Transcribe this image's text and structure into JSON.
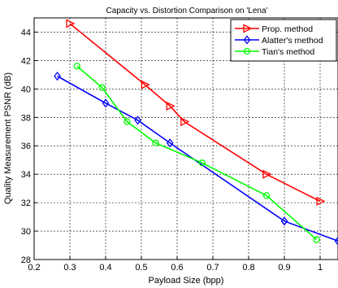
{
  "chart_data": {
    "type": "line",
    "title": "Capacity vs. Distortion Comparison on 'Lena'",
    "xlabel": "Payload Size (bpp)",
    "ylabel": "Quality Measurement PSNR (dB)",
    "xlim": [
      0.2,
      1.05
    ],
    "ylim": [
      28,
      45
    ],
    "xticks": [
      0.2,
      0.3,
      0.4,
      0.5,
      0.6,
      0.7,
      0.8,
      0.9,
      1
    ],
    "yticks": [
      28,
      30,
      32,
      34,
      36,
      38,
      40,
      42,
      44
    ],
    "grid": true,
    "legend": "top-right",
    "series": [
      {
        "name": "Prop. method",
        "color": "#ff0000",
        "marker": "triangle-right",
        "x": [
          0.3,
          0.51,
          0.58,
          0.62,
          0.85,
          1.0
        ],
        "y": [
          44.6,
          40.3,
          38.8,
          37.7,
          34.0,
          32.1
        ]
      },
      {
        "name": "Alatter's method",
        "color": "#0000ff",
        "marker": "diamond",
        "x": [
          0.265,
          0.4,
          0.49,
          0.58,
          0.9,
          1.05
        ],
        "y": [
          40.9,
          39.0,
          37.8,
          36.2,
          30.7,
          29.3
        ]
      },
      {
        "name": "Tian's method",
        "color": "#00ff00",
        "marker": "circle",
        "x": [
          0.32,
          0.39,
          0.46,
          0.54,
          0.67,
          0.85,
          0.99
        ],
        "y": [
          41.6,
          40.1,
          37.7,
          36.2,
          34.8,
          32.5,
          29.4
        ]
      }
    ]
  }
}
